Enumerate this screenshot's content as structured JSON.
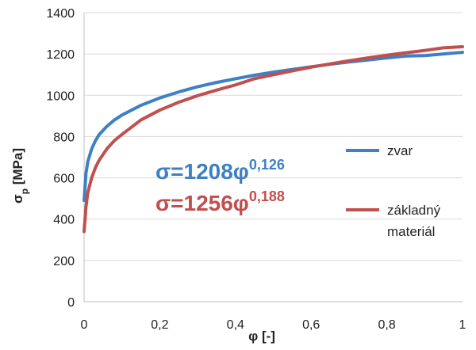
{
  "chart_data": {
    "type": "line",
    "title": "",
    "xlabel": "φ [-]",
    "ylabel_main": "σ",
    "ylabel_sub": "p",
    "ylabel_unit": " [MPa]",
    "xlim": [
      0,
      1
    ],
    "ylim": [
      0,
      1400
    ],
    "xticks": [
      0,
      0.2,
      0.4,
      0.6,
      0.8,
      1
    ],
    "xtick_labels": [
      "0",
      "0,2",
      "0,4",
      "0,6",
      "0,8",
      "1"
    ],
    "yticks": [
      0,
      200,
      400,
      600,
      800,
      1000,
      1200,
      1400
    ],
    "ytick_labels": [
      "0",
      "200",
      "400",
      "600",
      "800",
      "1000",
      "1200",
      "1400"
    ],
    "grid": "horizontal",
    "legend_position": "right",
    "series": [
      {
        "name": "zvar",
        "color": "#3f7fc3",
        "coefficient": 1208,
        "exponent": 0.126,
        "x": [
          0.0,
          0.005,
          0.01,
          0.02,
          0.03,
          0.04,
          0.06,
          0.08,
          0.1,
          0.15,
          0.2,
          0.25,
          0.3,
          0.35,
          0.4,
          0.45,
          0.5,
          0.55,
          0.6,
          0.65,
          0.7,
          0.75,
          0.8,
          0.85,
          0.9,
          0.95,
          1.0
        ],
        "y": [
          490,
          622,
          680,
          740,
          780,
          810,
          849,
          880,
          904,
          951,
          987,
          1016,
          1041,
          1062,
          1080,
          1097,
          1112,
          1125,
          1138,
          1150,
          1161,
          1171,
          1181,
          1190,
          1192,
          1200,
          1208
        ]
      },
      {
        "name": "základný materiál",
        "color": "#c0504d",
        "coefficient": 1256,
        "exponent": 0.188,
        "x": [
          0.0,
          0.005,
          0.01,
          0.02,
          0.03,
          0.04,
          0.06,
          0.08,
          0.1,
          0.15,
          0.2,
          0.25,
          0.3,
          0.35,
          0.4,
          0.45,
          0.5,
          0.55,
          0.6,
          0.65,
          0.7,
          0.75,
          0.8,
          0.85,
          0.9,
          0.95,
          1.0
        ],
        "y": [
          340,
          460,
          530,
          600,
          650,
          686,
          740,
          780,
          810,
          880,
          928,
          966,
          998,
          1025,
          1050,
          1080,
          1099,
          1118,
          1136,
          1152,
          1167,
          1181,
          1194,
          1206,
          1217,
          1230,
          1235
        ]
      }
    ],
    "annotations": [
      {
        "text_main": "σ=1208φ",
        "text_sup": "0,126",
        "color": "#3f7fc3"
      },
      {
        "text_main": "σ=1256φ",
        "text_sup": "0,188",
        "color": "#c0504d"
      }
    ],
    "legend": [
      {
        "lines": [
          "zvar"
        ]
      },
      {
        "lines": [
          "základný",
          "materiál"
        ]
      }
    ]
  }
}
